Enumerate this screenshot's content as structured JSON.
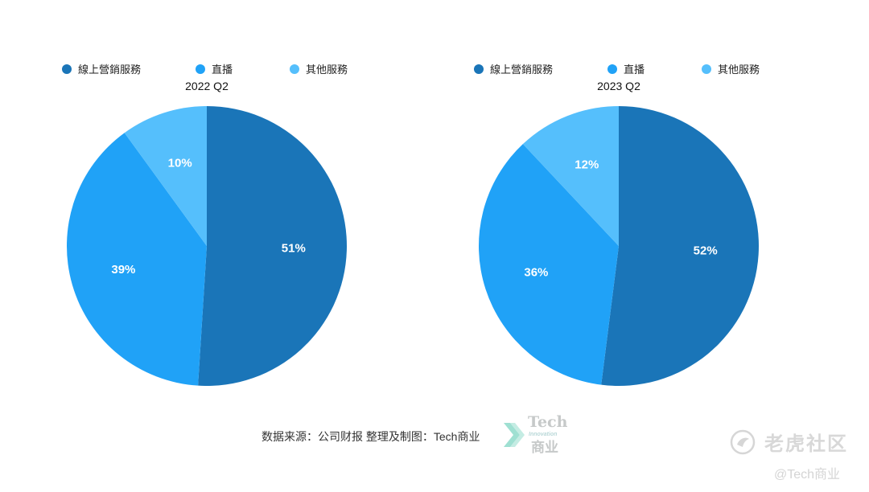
{
  "chart_data": [
    {
      "type": "pie",
      "title": "2022 Q2",
      "legend": [
        "線上營銷服務",
        "直播",
        "其他服務"
      ],
      "legend_position": "top",
      "values": [
        51,
        39,
        10
      ],
      "labels": [
        "51%",
        "39%",
        "10%"
      ],
      "colors": [
        "#1a75b8",
        "#20a2f7",
        "#55bffc"
      ]
    },
    {
      "type": "pie",
      "title": "2023 Q2",
      "legend": [
        "線上營銷服務",
        "直播",
        "其他服務"
      ],
      "legend_position": "top",
      "values": [
        52,
        36,
        12
      ],
      "labels": [
        "52%",
        "36%",
        "12%"
      ],
      "colors": [
        "#1a75b8",
        "#20a2f7",
        "#55bffc"
      ]
    }
  ],
  "footer": {
    "source": "数据来源：公司财报 整理及制图：Tech商业",
    "brand_tech": "Tech",
    "brand_sub": "Innovation",
    "brand_cn": "商业"
  },
  "watermark": {
    "name": "老虎社区",
    "handle": "@Tech商业"
  }
}
